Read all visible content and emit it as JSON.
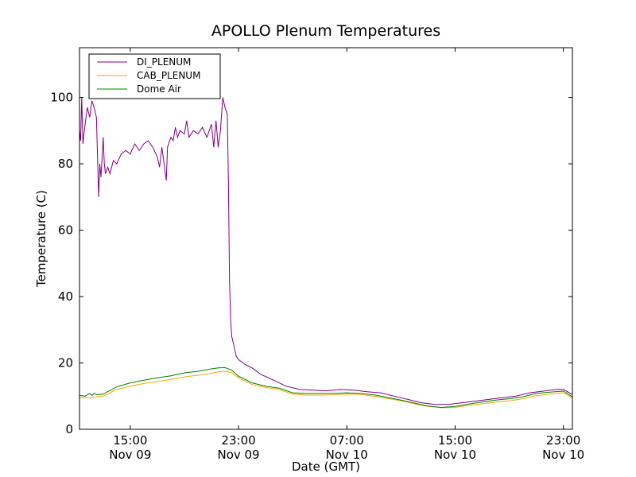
{
  "chart_data": {
    "type": "line",
    "title": "APOLLO Plenum Temperatures",
    "xlabel": "Date (GMT)",
    "ylabel": "Temperature (C)",
    "x_unit": "datetime (GMT)",
    "xlim": [
      "2013-11-09T11:15",
      "2013-11-10T23:40"
    ],
    "ylim": [
      0,
      115
    ],
    "xticks": [
      {
        "value": "2013-11-09T15:00",
        "label_time": "15:00",
        "label_date": "Nov 09"
      },
      {
        "value": "2013-11-09T23:00",
        "label_time": "23:00",
        "label_date": "Nov 09"
      },
      {
        "value": "2013-11-10T07:00",
        "label_time": "07:00",
        "label_date": "Nov 10"
      },
      {
        "value": "2013-11-10T15:00",
        "label_time": "15:00",
        "label_date": "Nov 10"
      },
      {
        "value": "2013-11-10T23:00",
        "label_time": "23:00",
        "label_date": "Nov 10"
      }
    ],
    "yticks": [
      0,
      20,
      40,
      60,
      80,
      100
    ],
    "grid": false,
    "legend": "top-left",
    "series": [
      {
        "name": "DI_PLENUM",
        "color": "#800080",
        "points": [
          [
            "2013-11-09T11:15",
            90
          ],
          [
            "2013-11-09T11:20",
            87
          ],
          [
            "2013-11-09T11:25",
            100
          ],
          [
            "2013-11-09T11:30",
            86
          ],
          [
            "2013-11-09T11:40",
            92
          ],
          [
            "2013-11-09T11:50",
            97
          ],
          [
            "2013-11-09T12:00",
            94
          ],
          [
            "2013-11-09T12:10",
            99
          ],
          [
            "2013-11-09T12:20",
            97
          ],
          [
            "2013-11-09T12:30",
            94
          ],
          [
            "2013-11-09T12:40",
            70
          ],
          [
            "2013-11-09T12:45",
            80
          ],
          [
            "2013-11-09T12:50",
            76
          ],
          [
            "2013-11-09T13:00",
            88
          ],
          [
            "2013-11-09T13:05",
            80
          ],
          [
            "2013-11-09T13:10",
            77
          ],
          [
            "2013-11-09T13:20",
            79
          ],
          [
            "2013-11-09T13:30",
            77
          ],
          [
            "2013-11-09T13:45",
            81
          ],
          [
            "2013-11-09T14:00",
            80
          ],
          [
            "2013-11-09T14:20",
            83
          ],
          [
            "2013-11-09T14:40",
            84
          ],
          [
            "2013-11-09T15:00",
            83
          ],
          [
            "2013-11-09T15:20",
            86
          ],
          [
            "2013-11-09T15:40",
            84
          ],
          [
            "2013-11-09T16:00",
            86
          ],
          [
            "2013-11-09T16:20",
            87
          ],
          [
            "2013-11-09T16:40",
            85
          ],
          [
            "2013-11-09T17:00",
            82
          ],
          [
            "2013-11-09T17:10",
            79
          ],
          [
            "2013-11-09T17:20",
            85
          ],
          [
            "2013-11-09T17:30",
            80
          ],
          [
            "2013-11-09T17:40",
            75
          ],
          [
            "2013-11-09T17:45",
            85
          ],
          [
            "2013-11-09T18:00",
            88
          ],
          [
            "2013-11-09T18:10",
            87
          ],
          [
            "2013-11-09T18:20",
            91
          ],
          [
            "2013-11-09T18:30",
            88
          ],
          [
            "2013-11-09T18:40",
            90
          ],
          [
            "2013-11-09T19:00",
            89
          ],
          [
            "2013-11-09T19:10",
            93
          ],
          [
            "2013-11-09T19:20",
            88
          ],
          [
            "2013-11-09T19:40",
            90
          ],
          [
            "2013-11-09T20:00",
            89
          ],
          [
            "2013-11-09T20:20",
            91
          ],
          [
            "2013-11-09T20:40",
            88
          ],
          [
            "2013-11-09T21:00",
            92
          ],
          [
            "2013-11-09T21:10",
            85
          ],
          [
            "2013-11-09T21:20",
            93
          ],
          [
            "2013-11-09T21:30",
            85
          ],
          [
            "2013-11-09T21:40",
            90
          ],
          [
            "2013-11-09T21:50",
            100
          ],
          [
            "2013-11-09T22:00",
            97
          ],
          [
            "2013-11-09T22:10",
            95
          ],
          [
            "2013-11-09T22:15",
            75
          ],
          [
            "2013-11-09T22:20",
            45
          ],
          [
            "2013-11-09T22:25",
            33
          ],
          [
            "2013-11-09T22:30",
            28
          ],
          [
            "2013-11-09T22:40",
            25
          ],
          [
            "2013-11-09T22:50",
            22
          ],
          [
            "2013-11-09T23:00",
            21
          ],
          [
            "2013-11-09T23:30",
            19.5
          ],
          [
            "2013-11-10T00:00",
            18.5
          ],
          [
            "2013-11-10T00:40",
            16.5
          ],
          [
            "2013-11-10T01:30",
            15
          ],
          [
            "2013-11-10T02:30",
            13
          ],
          [
            "2013-11-10T03:30",
            12
          ],
          [
            "2013-11-10T04:30",
            11.8
          ],
          [
            "2013-11-10T05:30",
            11.6
          ],
          [
            "2013-11-10T06:30",
            12
          ],
          [
            "2013-11-10T07:30",
            11.8
          ],
          [
            "2013-11-10T08:30",
            11.3
          ],
          [
            "2013-11-10T09:30",
            11
          ],
          [
            "2013-11-10T10:30",
            10
          ],
          [
            "2013-11-10T11:30",
            9
          ],
          [
            "2013-11-10T12:30",
            8
          ],
          [
            "2013-11-10T13:30",
            7.5
          ],
          [
            "2013-11-10T14:30",
            7.5
          ],
          [
            "2013-11-10T15:30",
            8
          ],
          [
            "2013-11-10T16:30",
            8.5
          ],
          [
            "2013-11-10T17:30",
            9
          ],
          [
            "2013-11-10T18:30",
            9.5
          ],
          [
            "2013-11-10T19:30",
            10
          ],
          [
            "2013-11-10T20:30",
            11
          ],
          [
            "2013-11-10T21:30",
            11.5
          ],
          [
            "2013-11-10T22:30",
            12
          ],
          [
            "2013-11-10T23:00",
            12
          ],
          [
            "2013-11-10T23:40",
            10.5
          ]
        ]
      },
      {
        "name": "CAB_PLENUM",
        "color": "#ffa500",
        "points": [
          [
            "2013-11-09T11:15",
            9.5
          ],
          [
            "2013-11-09T12:00",
            9.5
          ],
          [
            "2013-11-09T12:30",
            9.8
          ],
          [
            "2013-11-09T13:00",
            10
          ],
          [
            "2013-11-09T14:00",
            12
          ],
          [
            "2013-11-09T15:00",
            13
          ],
          [
            "2013-11-09T16:00",
            13.8
          ],
          [
            "2013-11-09T17:00",
            14.4
          ],
          [
            "2013-11-09T18:00",
            15
          ],
          [
            "2013-11-09T19:00",
            15.8
          ],
          [
            "2013-11-09T20:00",
            16.3
          ],
          [
            "2013-11-09T21:00",
            16.9
          ],
          [
            "2013-11-09T21:30",
            17.3
          ],
          [
            "2013-11-09T22:00",
            17.5
          ],
          [
            "2013-11-09T22:30",
            17
          ],
          [
            "2013-11-09T23:00",
            15.5
          ],
          [
            "2013-11-10T00:00",
            13.5
          ],
          [
            "2013-11-10T01:00",
            12.6
          ],
          [
            "2013-11-10T02:00",
            12
          ],
          [
            "2013-11-10T03:00",
            10.6
          ],
          [
            "2013-11-10T04:00",
            10.3
          ],
          [
            "2013-11-10T05:00",
            10.3
          ],
          [
            "2013-11-10T06:00",
            10.4
          ],
          [
            "2013-11-10T07:00",
            10.6
          ],
          [
            "2013-11-10T08:00",
            10.5
          ],
          [
            "2013-11-10T09:00",
            10
          ],
          [
            "2013-11-10T10:00",
            9.3
          ],
          [
            "2013-11-10T11:00",
            8.6
          ],
          [
            "2013-11-10T12:00",
            7.7
          ],
          [
            "2013-11-10T13:00",
            6.9
          ],
          [
            "2013-11-10T14:00",
            6.5
          ],
          [
            "2013-11-10T15:00",
            6.6
          ],
          [
            "2013-11-10T16:00",
            7.2
          ],
          [
            "2013-11-10T17:00",
            7.7
          ],
          [
            "2013-11-10T18:00",
            8.2
          ],
          [
            "2013-11-10T19:00",
            8.6
          ],
          [
            "2013-11-10T20:00",
            9.2
          ],
          [
            "2013-11-10T21:00",
            10.1
          ],
          [
            "2013-11-10T22:00",
            10.6
          ],
          [
            "2013-11-10T23:00",
            11
          ],
          [
            "2013-11-10T23:40",
            9.5
          ]
        ]
      },
      {
        "name": "Dome Air",
        "color": "#008000",
        "points": [
          [
            "2013-11-09T11:15",
            10.2
          ],
          [
            "2013-11-09T11:40",
            10
          ],
          [
            "2013-11-09T12:00",
            10.8
          ],
          [
            "2013-11-09T12:10",
            10.2
          ],
          [
            "2013-11-09T12:20",
            10.9
          ],
          [
            "2013-11-09T12:30",
            10.4
          ],
          [
            "2013-11-09T13:00",
            10.6
          ],
          [
            "2013-11-09T14:00",
            12.8
          ],
          [
            "2013-11-09T15:00",
            14
          ],
          [
            "2013-11-09T16:00",
            14.8
          ],
          [
            "2013-11-09T17:00",
            15.5
          ],
          [
            "2013-11-09T18:00",
            16.1
          ],
          [
            "2013-11-09T19:00",
            17
          ],
          [
            "2013-11-09T20:00",
            17.5
          ],
          [
            "2013-11-09T21:00",
            18.2
          ],
          [
            "2013-11-09T21:30",
            18.5
          ],
          [
            "2013-11-09T22:00",
            18.6
          ],
          [
            "2013-11-09T22:30",
            17.8
          ],
          [
            "2013-11-09T23:00",
            16
          ],
          [
            "2013-11-10T00:00",
            14
          ],
          [
            "2013-11-10T01:00",
            13
          ],
          [
            "2013-11-10T02:00",
            12.4
          ],
          [
            "2013-11-10T03:00",
            11
          ],
          [
            "2013-11-10T04:00",
            10.8
          ],
          [
            "2013-11-10T05:00",
            10.8
          ],
          [
            "2013-11-10T06:00",
            10.8
          ],
          [
            "2013-11-10T07:00",
            11
          ],
          [
            "2013-11-10T08:00",
            10.8
          ],
          [
            "2013-11-10T09:00",
            10.4
          ],
          [
            "2013-11-10T10:00",
            9.6
          ],
          [
            "2013-11-10T11:00",
            8.8
          ],
          [
            "2013-11-10T12:00",
            7.9
          ],
          [
            "2013-11-10T13:00",
            7
          ],
          [
            "2013-11-10T14:00",
            6.6
          ],
          [
            "2013-11-10T15:00",
            6.9
          ],
          [
            "2013-11-10T16:00",
            7.6
          ],
          [
            "2013-11-10T17:00",
            8.2
          ],
          [
            "2013-11-10T18:00",
            8.8
          ],
          [
            "2013-11-10T19:00",
            9.2
          ],
          [
            "2013-11-10T20:00",
            9.8
          ],
          [
            "2013-11-10T21:00",
            10.8
          ],
          [
            "2013-11-10T22:00",
            11.2
          ],
          [
            "2013-11-10T23:00",
            11.5
          ],
          [
            "2013-11-10T23:40",
            9.8
          ]
        ]
      }
    ]
  }
}
